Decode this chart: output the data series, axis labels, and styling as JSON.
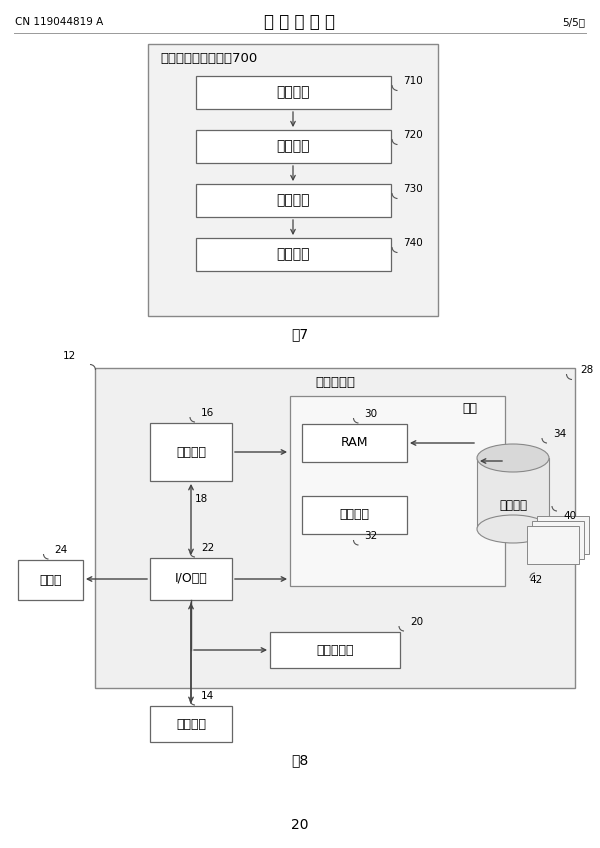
{
  "page_number": "CN 119044819 A",
  "page_title": "说 明 书 附 图",
  "page_right": "5/5页",
  "page_bottom": "20",
  "fig7_title": "芯片引脚的测试装置700",
  "fig7_label": "图7",
  "fig7_boxes": [
    {
      "label": "确定模块",
      "num": "710"
    },
    {
      "label": "配置模块",
      "num": "720"
    },
    {
      "label": "读取模块",
      "num": "730"
    },
    {
      "label": "判断模块",
      "num": "740"
    }
  ],
  "fig8_label": "图8",
  "fig8_title": "计算机设备",
  "fig8_num": "28",
  "fig8_outer_num": "12",
  "memory_label": "内存",
  "ram_label": "RAM",
  "cache_label": "高速缓存",
  "storage_label": "存储系统",
  "cpu_label": "处理单元",
  "io_label": "I/O接口",
  "display_label": "显示器",
  "network_label": "网络适配器",
  "external_label": "外部设备",
  "nums": {
    "n12": "12",
    "n14": "14",
    "n16": "16",
    "n18": "18",
    "n20": "20",
    "n22": "22",
    "n24": "24",
    "n28": "28",
    "n30": "30",
    "n32": "32",
    "n34": "34",
    "n40": "40",
    "n42": "42"
  },
  "bg_color": "#ffffff",
  "box_edge_color": "#555555",
  "box_face_color": "#ffffff",
  "outer_face_color": "#eeeeee",
  "text_color": "#000000",
  "line_color": "#444444"
}
